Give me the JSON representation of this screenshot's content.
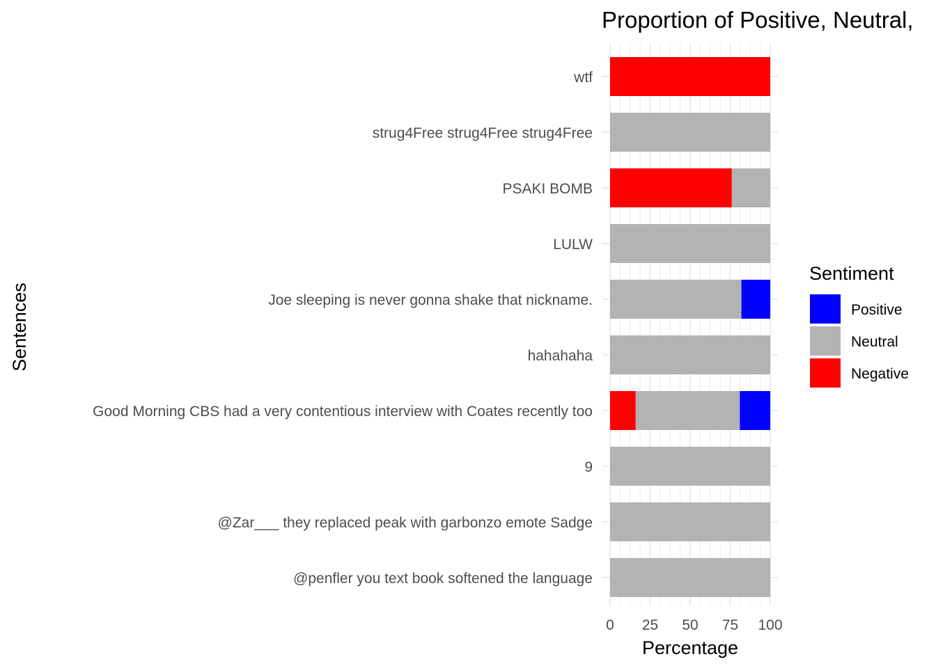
{
  "chart_data": {
    "type": "bar",
    "orientation": "horizontal",
    "stacked": true,
    "title": "Proportion of Positive, Neutral,",
    "xlabel": "Percentage",
    "ylabel": "Sentences",
    "xlim": [
      0,
      100
    ],
    "xticks": [
      0,
      25,
      50,
      75,
      100
    ],
    "grid": true,
    "legend_position": "right",
    "legend_title": "Sentiment",
    "categories": [
      "wtf",
      "strug4Free strug4Free strug4Free",
      "PSAKI BOMB",
      "LULW",
      "Joe sleeping is never gonna shake that nickname.",
      "hahahaha",
      "Good Morning CBS had a very contentious interview with Coates recently too",
      "9",
      "@Zar___ they replaced peak with garbonzo emote Sadge",
      "@penfler you text book softened the language"
    ],
    "series": [
      {
        "name": "Negative",
        "color": "#ff0000",
        "values": [
          100,
          0,
          76,
          0,
          0,
          0,
          16,
          0,
          0,
          0
        ]
      },
      {
        "name": "Neutral",
        "color": "#b3b3b3",
        "values": [
          0,
          100,
          24,
          100,
          82,
          100,
          65,
          100,
          100,
          100
        ]
      },
      {
        "name": "Positive",
        "color": "#0000ff",
        "values": [
          0,
          0,
          0,
          0,
          18,
          0,
          19,
          0,
          0,
          0
        ]
      }
    ],
    "legend_order": [
      "Positive",
      "Neutral",
      "Negative"
    ]
  }
}
